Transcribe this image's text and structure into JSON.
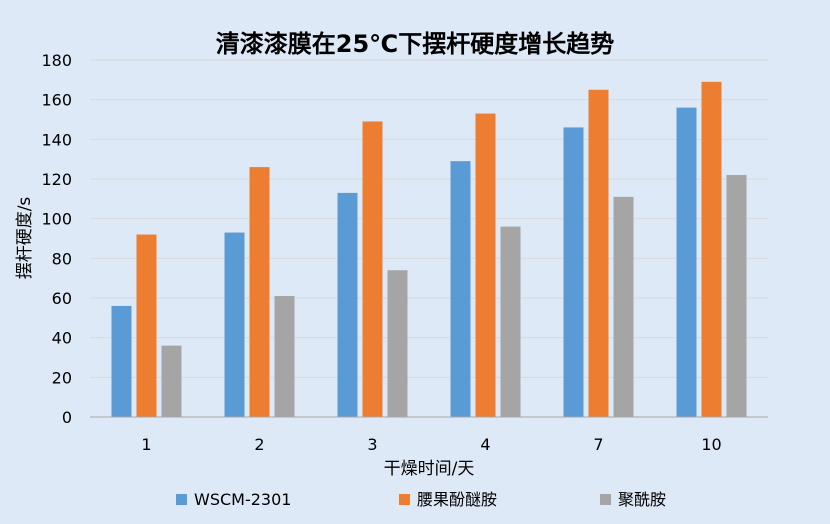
{
  "chart_data": {
    "type": "bar",
    "title": "清漆漆膜在25℃下摆杆硬度增长趋势",
    "xlabel": "干燥时间/天",
    "ylabel": "摆杆硬度/s",
    "categories": [
      "1",
      "2",
      "3",
      "4",
      "7",
      "10"
    ],
    "ylim": [
      0,
      180
    ],
    "yticks": [
      0,
      20,
      40,
      60,
      80,
      100,
      120,
      140,
      160,
      180
    ],
    "grid": true,
    "legend_position": "bottom",
    "series": [
      {
        "name": "WSCM-2301",
        "color": "#5b9bd5",
        "values": [
          56,
          93,
          113,
          129,
          146,
          156
        ]
      },
      {
        "name": "腰果酚醚胺",
        "color": "#ed7d31",
        "values": [
          92,
          126,
          149,
          153,
          165,
          169
        ]
      },
      {
        "name": "聚酰胺",
        "color": "#a5a5a5",
        "values": [
          36,
          61,
          74,
          96,
          111,
          122
        ]
      }
    ]
  }
}
